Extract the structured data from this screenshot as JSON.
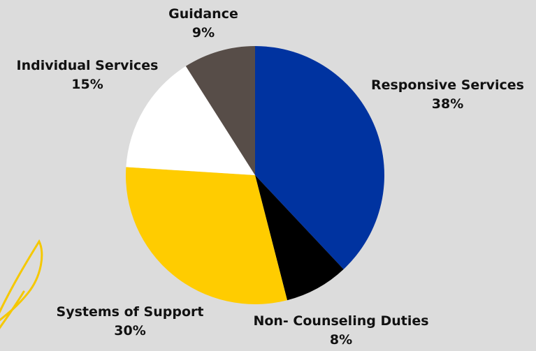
{
  "chart_data": {
    "type": "pie",
    "start_angle_deg": 0,
    "direction": "clockwise",
    "slices": [
      {
        "label": "Responsive Services",
        "value": 38,
        "display": "38%",
        "color": "#0033a0"
      },
      {
        "label": "Non- Counseling Duties",
        "value": 8,
        "display": "8%",
        "color": "#000000"
      },
      {
        "label": "Systems of Support",
        "value": 30,
        "display": "30%",
        "color": "#ffcc00"
      },
      {
        "label": "Individual Services",
        "value": 15,
        "display": "15%",
        "color": "#ffffff"
      },
      {
        "label": "Guidance",
        "value": 9,
        "display": "9%",
        "color": "#574d48"
      }
    ]
  },
  "decoration": {
    "leaf_color": "#f5c800",
    "icon": "leaf-outline-icon"
  }
}
